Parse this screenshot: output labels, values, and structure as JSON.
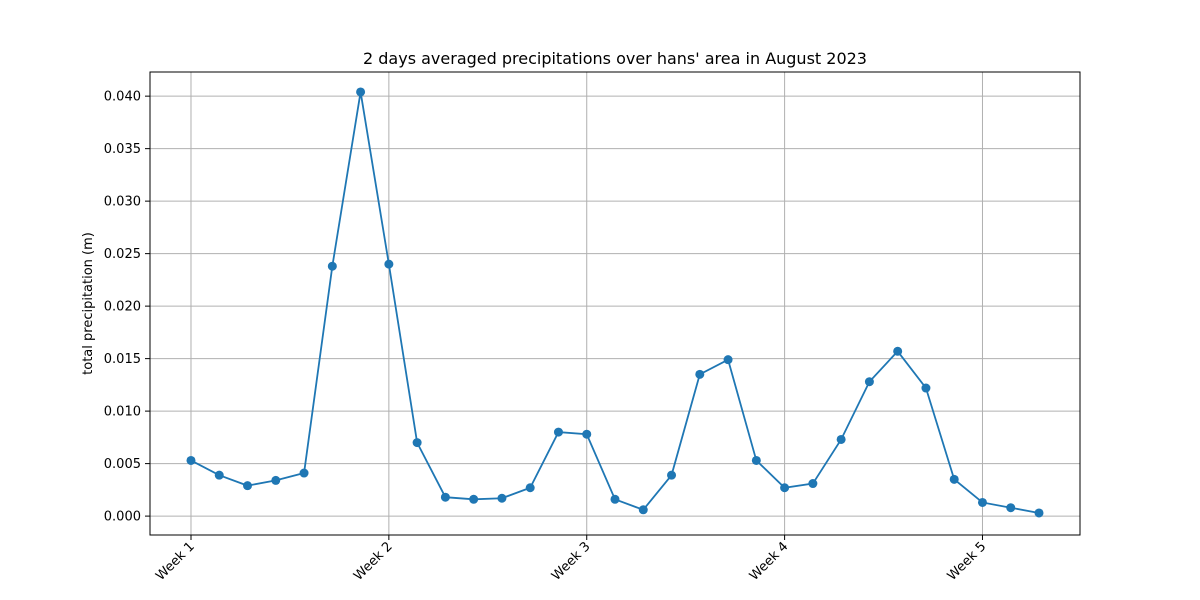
{
  "chart_data": {
    "type": "line",
    "title": "2 days averaged precipitations over hans' area in August 2023",
    "xlabel": "",
    "ylabel": "total precipitation (m)",
    "x_ticks": [
      "Week 1",
      "Week 2",
      "Week 3",
      "Week 4",
      "Week 5"
    ],
    "x_tick_positions": [
      0,
      7,
      14,
      21,
      28
    ],
    "xlim": [
      -1.45,
      31.45
    ],
    "ylim": [
      -0.0018,
      0.0423
    ],
    "y_ticks": [
      0.0,
      0.005,
      0.01,
      0.015,
      0.02,
      0.025,
      0.03,
      0.035,
      0.04
    ],
    "y_tick_labels": [
      "0.000",
      "0.005",
      "0.010",
      "0.015",
      "0.020",
      "0.025",
      "0.030",
      "0.035",
      "0.040"
    ],
    "grid": true,
    "series": [
      {
        "color": "#1f77b4",
        "x": [
          0,
          1,
          2,
          3,
          4,
          5,
          6,
          7,
          8,
          9,
          10,
          11,
          12,
          13,
          14,
          15,
          16,
          17,
          18,
          19,
          20,
          21,
          22,
          23,
          24,
          25,
          26,
          27,
          28,
          29,
          30
        ],
        "values": [
          0.0053,
          0.0039,
          0.0029,
          0.0034,
          0.0041,
          0.0238,
          0.0404,
          0.024,
          0.007,
          0.0018,
          0.0016,
          0.0017,
          0.0027,
          0.008,
          0.0078,
          0.0016,
          0.0006,
          0.0039,
          0.0135,
          0.0149,
          0.0053,
          0.0027,
          0.0031,
          0.0073,
          0.0128,
          0.0157,
          0.0122,
          0.0035,
          0.0013,
          0.0008,
          0.0003
        ]
      }
    ]
  }
}
